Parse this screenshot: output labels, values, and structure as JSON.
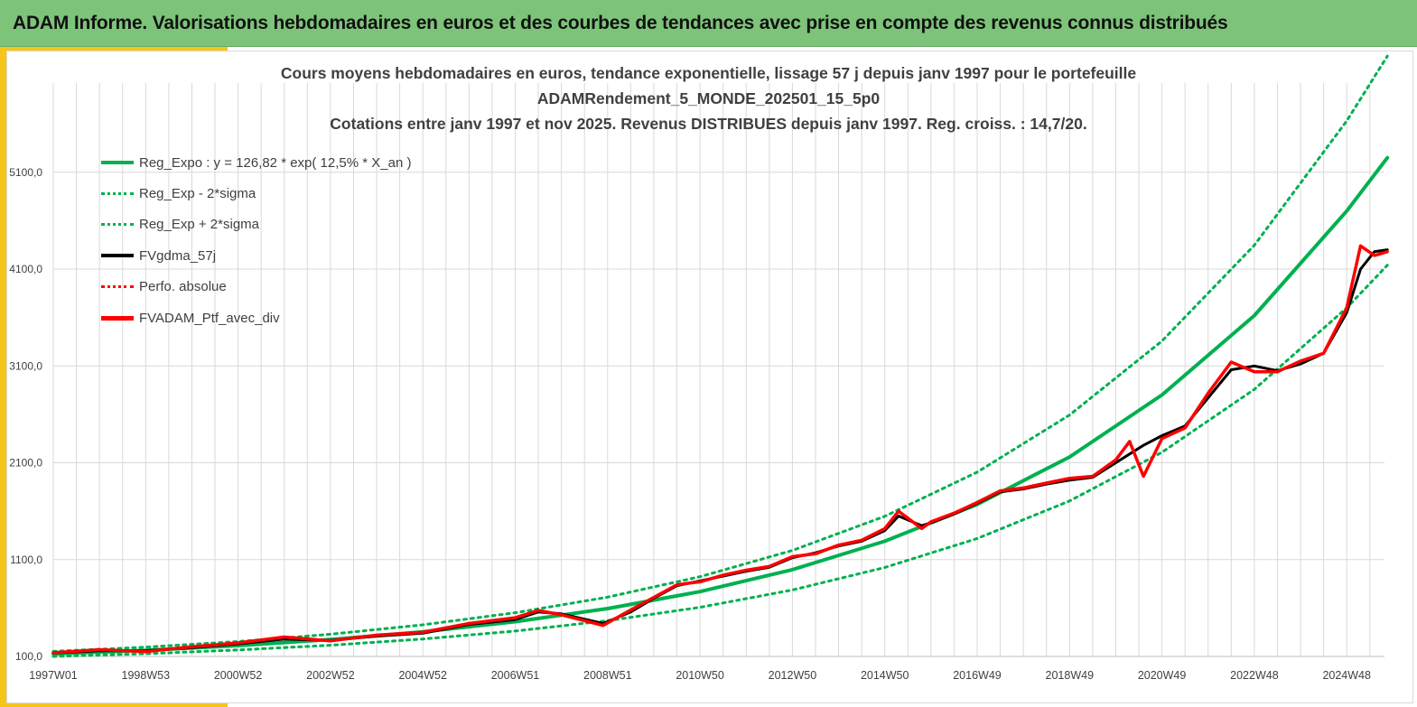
{
  "banner": {
    "title": "ADAM Informe. Valorisations hebdomadaires en euros et des courbes de tendances avec prise en compte des revenus connus distribués"
  },
  "colors": {
    "banner_bg": "#7dc47a",
    "accent": "#f5c518",
    "trend_green": "#00b050",
    "series_black": "#000000",
    "series_red": "#ff0000",
    "grid": "#d9d9d9",
    "text": "#404040"
  },
  "chart_data": {
    "type": "line",
    "title_lines": [
      "Cours moyens hebdomadaires  en euros, tendance exponentielle, lissage 57 j depuis janv 1997 pour le portefeuille",
      "ADAMRendement_5_MONDE_202501_15_5p0",
      "Cotations  entre janv 1997 et nov  2025. Revenus DISTRIBUES depuis janv 1997. Reg. croiss. : 14,7/20."
    ],
    "xlabel": "",
    "ylabel": "",
    "x_start": 1997.0,
    "x_end": 2025.88,
    "x_ticks": [
      {
        "label": "1997W01",
        "t": 1997.0
      },
      {
        "label": "1998W53",
        "t": 1999.0
      },
      {
        "label": "2000W52",
        "t": 2001.0
      },
      {
        "label": "2002W52",
        "t": 2003.0
      },
      {
        "label": "2004W52",
        "t": 2005.0
      },
      {
        "label": "2006W51",
        "t": 2007.0
      },
      {
        "label": "2008W51",
        "t": 2009.0
      },
      {
        "label": "2010W50",
        "t": 2011.0
      },
      {
        "label": "2012W50",
        "t": 2013.0
      },
      {
        "label": "2014W50",
        "t": 2015.0
      },
      {
        "label": "2016W49",
        "t": 2017.0
      },
      {
        "label": "2018W49",
        "t": 2019.0
      },
      {
        "label": "2020W49",
        "t": 2021.0
      },
      {
        "label": "2022W48",
        "t": 2023.0
      },
      {
        "label": "2024W48",
        "t": 2025.0
      }
    ],
    "ylim": [
      100,
      5900
    ],
    "y_ticks": [
      {
        "label": "100,0",
        "v": 100
      },
      {
        "label": "1100,0",
        "v": 1100
      },
      {
        "label": "2100,0",
        "v": 2100
      },
      {
        "label": "3100,0",
        "v": 3100
      },
      {
        "label": "4100,0",
        "v": 4100
      },
      {
        "label": "5100,0",
        "v": 5100
      }
    ],
    "grid": true,
    "legend_position": "top-left",
    "series": [
      {
        "name": "Reg_Expo : y = 126,82 * exp( 12,5% *  X_an )",
        "style": "solid-green",
        "x": [
          1997,
          1999,
          2001,
          2003,
          2005,
          2007,
          2009,
          2011,
          2013,
          2015,
          2017,
          2019,
          2021,
          2023,
          2025,
          2025.88
        ],
        "values": [
          127,
          163,
          212,
          274,
          355,
          459,
          594,
          769,
          996,
          1290,
          1670,
          2160,
          2800,
          3620,
          4700,
          5250
        ]
      },
      {
        "name": "Reg_Exp - 2*sigma",
        "style": "dotted-green",
        "x": [
          1997,
          1999,
          2001,
          2003,
          2005,
          2007,
          2009,
          2011,
          2013,
          2015,
          2017,
          2019,
          2021,
          2023,
          2025,
          2025.88
        ],
        "values": [
          100,
          128,
          167,
          216,
          280,
          362,
          469,
          607,
          786,
          1018,
          1318,
          1706,
          2208,
          2858,
          3700,
          4140
        ]
      },
      {
        "name": "Reg_Exp + 2*sigma",
        "style": "dotted-green",
        "x": [
          1997,
          1999,
          2001,
          2003,
          2005,
          2007,
          2009,
          2011,
          2013,
          2015,
          2017,
          2019,
          2021,
          2023,
          2025,
          2025.88
        ],
        "values": [
          152,
          196,
          254,
          329,
          426,
          551,
          713,
          923,
          1195,
          1547,
          2003,
          2593,
          3357,
          4346,
          5630,
          6300
        ]
      },
      {
        "name": "FVgdma_57j",
        "style": "solid-black",
        "x": [
          1997,
          1998,
          1999,
          2000,
          2001,
          2002,
          2003,
          2004,
          2005,
          2006,
          2007,
          2007.5,
          2008,
          2008.9,
          2009.5,
          2010,
          2010.5,
          2011,
          2011.5,
          2012,
          2012.5,
          2013,
          2013.5,
          2014,
          2014.5,
          2015,
          2015.3,
          2015.8,
          2016,
          2016.5,
          2017,
          2017.5,
          2018,
          2018.5,
          2019,
          2019.5,
          2020,
          2020.3,
          2020.6,
          2021,
          2021.5,
          2022,
          2022.5,
          2023,
          2023.5,
          2024,
          2024.5,
          2025,
          2025.3,
          2025.6,
          2025.88
        ],
        "values": [
          135,
          158,
          160,
          190,
          230,
          280,
          265,
          310,
          340,
          430,
          480,
          560,
          540,
          440,
          560,
          700,
          830,
          880,
          930,
          980,
          1020,
          1120,
          1170,
          1240,
          1290,
          1400,
          1550,
          1450,
          1480,
          1570,
          1680,
          1800,
          1830,
          1880,
          1920,
          1950,
          2100,
          2190,
          2280,
          2380,
          2480,
          2770,
          3060,
          3100,
          3050,
          3120,
          3230,
          3650,
          4100,
          4280,
          4300
        ]
      },
      {
        "name": "Perfo. absolue",
        "style": "dotted-red",
        "x": [],
        "values": []
      },
      {
        "name": "FVADAM_Ptf_avec_div",
        "style": "solid-red",
        "x": [
          1997,
          1998,
          1999,
          2000,
          2001,
          2002,
          2003,
          2004,
          2005,
          2006,
          2007,
          2007.5,
          2008,
          2008.9,
          2009.5,
          2010,
          2010.5,
          2011,
          2011.5,
          2012,
          2012.5,
          2013,
          2013.5,
          2014,
          2014.5,
          2015,
          2015.3,
          2015.8,
          2016,
          2016.5,
          2017,
          2017.5,
          2018,
          2018.5,
          2019,
          2019.5,
          2020,
          2020.3,
          2020.6,
          2021,
          2021.5,
          2022,
          2022.5,
          2023,
          2023.5,
          2024,
          2024.5,
          2025,
          2025.3,
          2025.6,
          2025.88
        ],
        "values": [
          138,
          170,
          150,
          200,
          240,
          300,
          260,
          320,
          350,
          440,
          500,
          575,
          530,
          420,
          580,
          710,
          840,
          870,
          940,
          990,
          1030,
          1130,
          1160,
          1250,
          1300,
          1420,
          1600,
          1420,
          1490,
          1580,
          1690,
          1810,
          1840,
          1890,
          1940,
          1960,
          2130,
          2320,
          1960,
          2350,
          2460,
          2820,
          3140,
          3040,
          3040,
          3150,
          3230,
          3700,
          4340,
          4240,
          4280
        ]
      }
    ]
  }
}
